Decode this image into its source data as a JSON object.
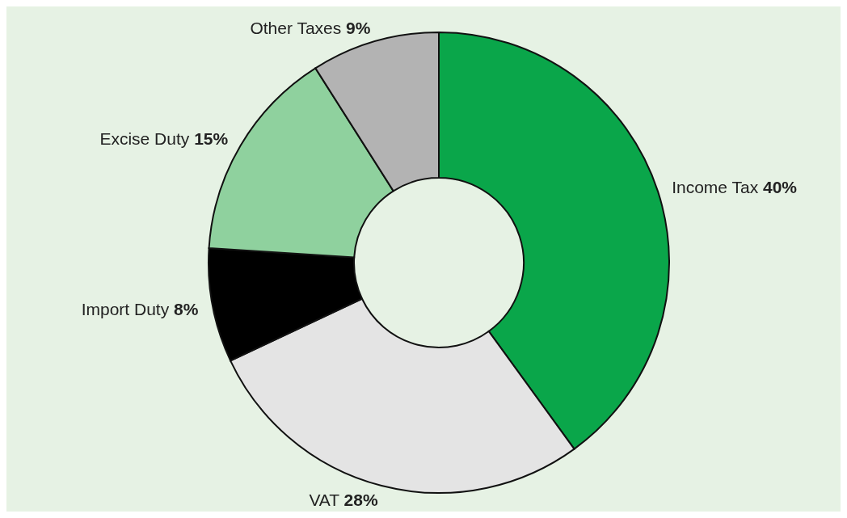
{
  "chart_data": {
    "type": "donut",
    "categories": [
      "Income Tax",
      "VAT",
      "Import Duty",
      "Excise Duty",
      "Other Taxes"
    ],
    "values": [
      40,
      28,
      8,
      15,
      9
    ],
    "colors": [
      "#0aa64a",
      "#e4e4e4",
      "#000000",
      "#8fd19e",
      "#b3b3b3"
    ],
    "value_labels": [
      "40%",
      "28%",
      "8%",
      "15%",
      "9%"
    ],
    "legend": false
  }
}
